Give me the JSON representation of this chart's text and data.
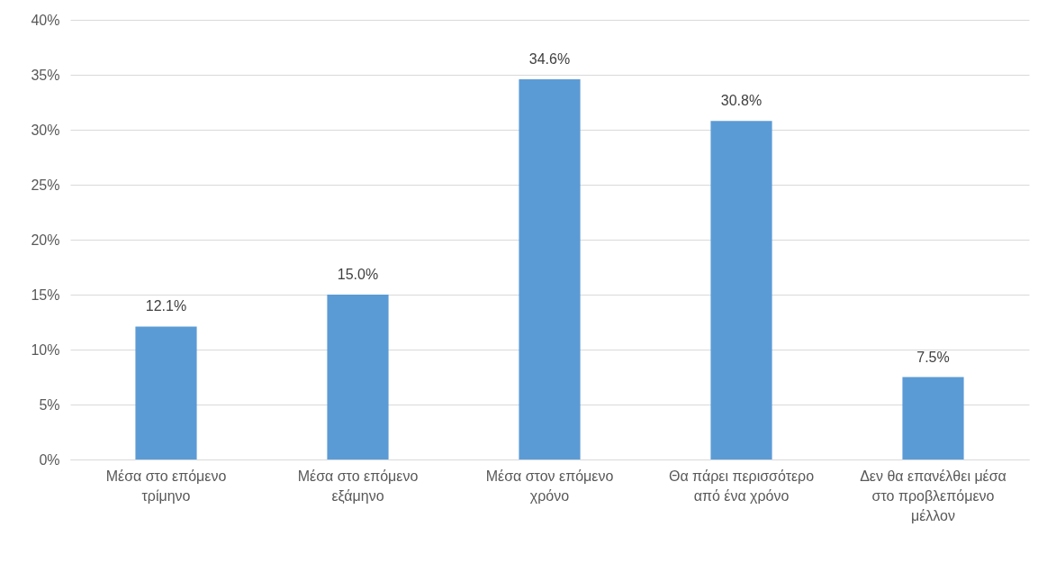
{
  "chart_data": {
    "type": "bar",
    "categories": [
      "Μέσα στο επόμενο τρίμηνο",
      "Μέσα στο επόμενο εξάμηνο",
      "Μέσα στον επόμενο χρόνο",
      "Θα πάρει περισσότερο από ένα χρόνο",
      "Δεν θα επανέλθει μέσα στο προβλεπόμενο μέλλον"
    ],
    "values": [
      12.1,
      15.0,
      34.6,
      30.8,
      7.5
    ],
    "value_labels": [
      "12.1%",
      "15.0%",
      "34.6%",
      "30.8%",
      "7.5%"
    ],
    "color": "#5b9bd5",
    "ylim": [
      0,
      40
    ],
    "yticks": [
      {
        "value": 0,
        "label": "0%"
      },
      {
        "value": 5,
        "label": "5%"
      },
      {
        "value": 10,
        "label": "10%"
      },
      {
        "value": 15,
        "label": "15%"
      },
      {
        "value": 20,
        "label": "20%"
      },
      {
        "value": 25,
        "label": "25%"
      },
      {
        "value": 30,
        "label": "30%"
      },
      {
        "value": 35,
        "label": "35%"
      },
      {
        "value": 40,
        "label": "40%"
      }
    ],
    "grid": "y"
  }
}
